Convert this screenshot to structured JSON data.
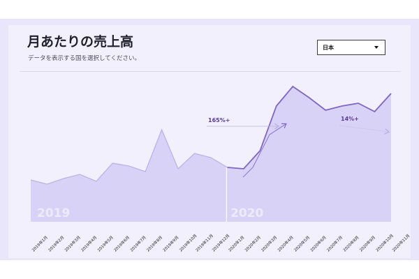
{
  "header": {
    "title": "月あたりの売上高",
    "subtitle": "データを表示する国を選択してください。"
  },
  "country_select": {
    "selected": "日本"
  },
  "colors": {
    "frame": "#e9e6fb",
    "panel": "#f2f0fd",
    "area_fill": "#d9d2f7",
    "line": "#7d67bf",
    "annotation": "#5a3aa0"
  },
  "chart_data": {
    "type": "area",
    "title": "",
    "xlabel": "",
    "ylabel": "",
    "grid": false,
    "ylim": [
      0,
      100
    ],
    "categories": [
      "2019年1月",
      "2019年2月",
      "2019年3月",
      "2019年4月",
      "2019年5月",
      "2019年6月",
      "2019年7月",
      "2019年8月",
      "2019年9月",
      "2019年10月",
      "2019年11月",
      "2019年12月",
      "2020年1月",
      "2020年2月",
      "2020年3月",
      "2020年4月",
      "2020年5月",
      "2020年6月",
      "2020年7月",
      "2020年8月",
      "2020年9月",
      "2020年10月",
      "2020年11月"
    ],
    "values": [
      30,
      27,
      31,
      34,
      29,
      42,
      40,
      36,
      66,
      38,
      49,
      46,
      39,
      38,
      51,
      83,
      97,
      89,
      80,
      83,
      85,
      79,
      92
    ],
    "year_labels": [
      "2019",
      "2020"
    ],
    "annotations": [
      {
        "label": "165%+"
      },
      {
        "label": "14%+"
      }
    ]
  }
}
